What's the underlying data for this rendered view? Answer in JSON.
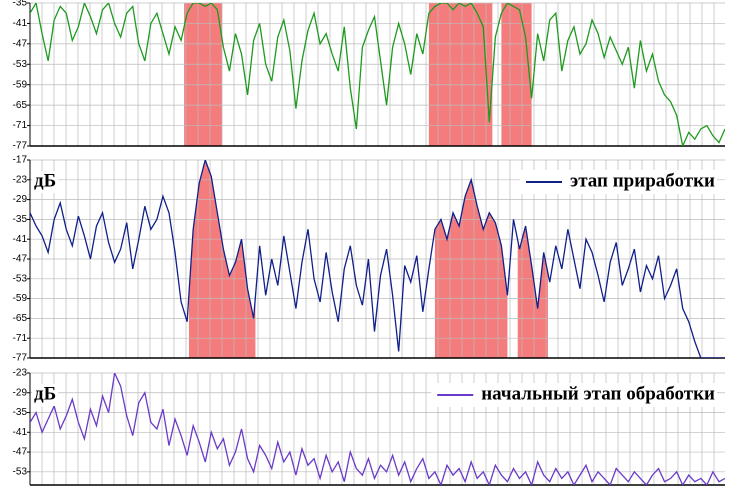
{
  "chart_data": [
    {
      "type": "line",
      "ylim": [
        -35,
        -77
      ],
      "yticks": [
        -35,
        -41,
        -47,
        -53,
        -59,
        -65,
        -71,
        -77
      ],
      "grid": true,
      "highlights": [
        [
          25.5,
          31.8
        ],
        [
          66,
          76.5
        ],
        [
          78,
          83
        ]
      ],
      "highlight_color": "#f57c7c",
      "highlight_fill": "full-height",
      "series": [
        {
          "color": "#1e9a1e",
          "values": [
            -38,
            -35,
            -44,
            -52,
            -40,
            -36,
            -38,
            -46,
            -42,
            -35,
            -39,
            -44,
            -37,
            -35,
            -41,
            -45,
            -38,
            -36,
            -47,
            -52,
            -41,
            -38,
            -44,
            -50,
            -42,
            -46,
            -38,
            -35,
            -35,
            -36,
            -35,
            -37,
            -48,
            -55,
            -44,
            -50,
            -62,
            -46,
            -41,
            -53,
            -58,
            -45,
            -40,
            -49,
            -66,
            -52,
            -43,
            -38,
            -47,
            -44,
            -50,
            -55,
            -42,
            -60,
            -72,
            -48,
            -43,
            -39,
            -52,
            -65,
            -48,
            -41,
            -47,
            -56,
            -44,
            -50,
            -38,
            -36,
            -35,
            -35,
            -37,
            -35,
            -36,
            -35,
            -38,
            -42,
            -70,
            -45,
            -38,
            -35,
            -36,
            -37,
            -45,
            -63,
            -44,
            -52,
            -40,
            -38,
            -55,
            -46,
            -42,
            -50,
            -47,
            -40,
            -44,
            -51,
            -45,
            -49,
            -53,
            -48,
            -60,
            -46,
            -55,
            -50,
            -58,
            -62,
            -64,
            -68,
            -77,
            -73,
            -75,
            -72,
            -71,
            -74,
            -76,
            -72
          ]
        }
      ]
    },
    {
      "type": "line",
      "ylim": [
        -17,
        -77
      ],
      "yticks": [
        -17,
        -23,
        -29,
        -35,
        -41,
        -47,
        -53,
        -59,
        -65,
        -71,
        -77
      ],
      "grid": true,
      "y_label": "дБ",
      "highlights": [
        [
          26.3,
          37.3
        ],
        [
          67,
          79
        ],
        [
          80.7,
          85.7
        ]
      ],
      "highlight_color": "#f57c7c",
      "highlight_fill": "under-line",
      "series": [
        {
          "name": "этап приработки",
          "color": "#10208a",
          "values": [
            -33,
            -37,
            -40,
            -45,
            -35,
            -30,
            -38,
            -43,
            -34,
            -40,
            -47,
            -37,
            -33,
            -42,
            -48,
            -44,
            -36,
            -50,
            -41,
            -31,
            -38,
            -35,
            -28,
            -33,
            -45,
            -60,
            -66,
            -38,
            -24,
            -17,
            -22,
            -33,
            -44,
            -52,
            -48,
            -41,
            -56,
            -65,
            -43,
            -58,
            -47,
            -55,
            -40,
            -51,
            -62,
            -48,
            -38,
            -53,
            -60,
            -45,
            -57,
            -66,
            -50,
            -43,
            -55,
            -61,
            -47,
            -69,
            -52,
            -44,
            -58,
            -75,
            -49,
            -54,
            -46,
            -63,
            -50,
            -38,
            -35,
            -41,
            -33,
            -37,
            -28,
            -23,
            -31,
            -38,
            -33,
            -36,
            -43,
            -58,
            -35,
            -44,
            -37,
            -49,
            -62,
            -45,
            -54,
            -43,
            -50,
            -38,
            -47,
            -56,
            -41,
            -45,
            -52,
            -60,
            -48,
            -42,
            -55,
            -50,
            -44,
            -57,
            -49,
            -53,
            -46,
            -59,
            -55,
            -50,
            -62,
            -66,
            -72,
            -77,
            -77,
            -77,
            -77,
            -77
          ]
        }
      ]
    },
    {
      "type": "line",
      "ylim": [
        -23,
        -57
      ],
      "yticks": [
        -23,
        -29,
        -35,
        -41,
        -47,
        -53
      ],
      "grid": true,
      "y_label": "дБ",
      "series": [
        {
          "name": "начальный этап обработки",
          "color": "#6a3bc8",
          "values": [
            -38,
            -35,
            -41,
            -37,
            -33,
            -40,
            -36,
            -31,
            -38,
            -43,
            -34,
            -39,
            -30,
            -35,
            -23,
            -27,
            -36,
            -42,
            -32,
            -29,
            -38,
            -40,
            -34,
            -45,
            -37,
            -42,
            -48,
            -39,
            -44,
            -50,
            -41,
            -46,
            -43,
            -51,
            -47,
            -40,
            -49,
            -53,
            -45,
            -48,
            -52,
            -44,
            -50,
            -47,
            -54,
            -46,
            -51,
            -49,
            -55,
            -48,
            -53,
            -50,
            -56,
            -47,
            -52,
            -54,
            -49,
            -55,
            -51,
            -53,
            -48,
            -54,
            -50,
            -56,
            -52,
            -49,
            -55,
            -53,
            -57,
            -51,
            -54,
            -52,
            -56,
            -50,
            -55,
            -53,
            -57,
            -51,
            -54,
            -56,
            -52,
            -55,
            -53,
            -57,
            -50,
            -54,
            -56,
            -52,
            -55,
            -53,
            -57,
            -54,
            -51,
            -56,
            -53,
            -55,
            -57,
            -52,
            -54,
            -56,
            -53,
            -55,
            -57,
            -54,
            -52,
            -56,
            -55,
            -53,
            -57,
            -54,
            -56,
            -55,
            -57,
            -53,
            -56,
            -55
          ]
        }
      ]
    }
  ]
}
